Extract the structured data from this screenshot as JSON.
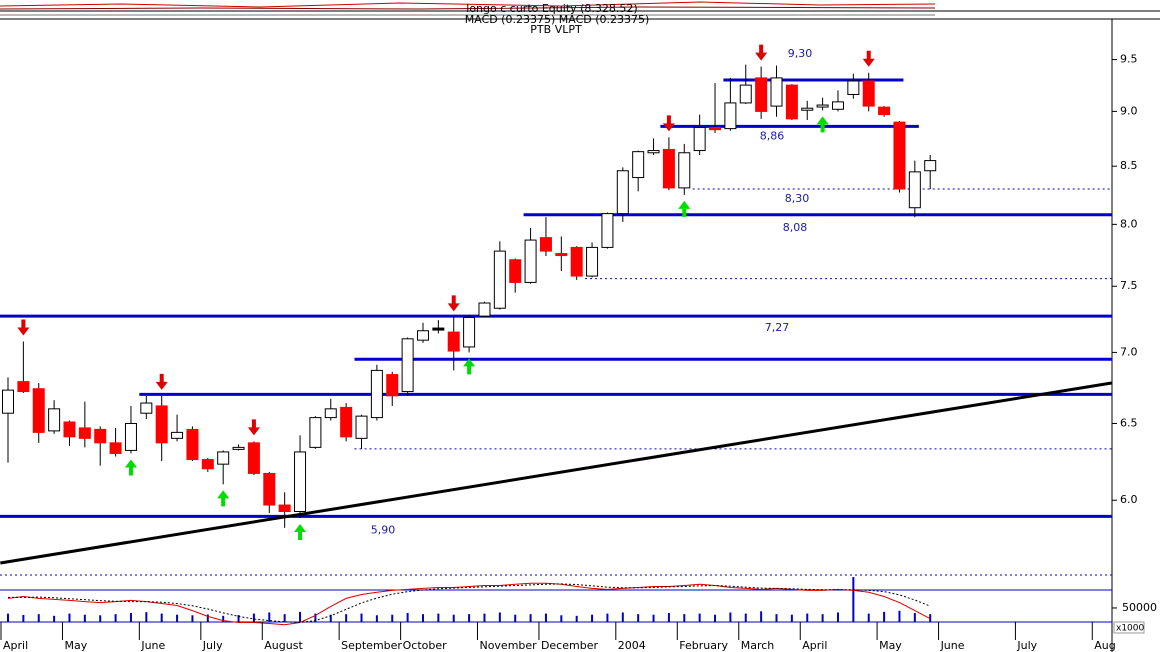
{
  "chart_data": {
    "type": "candlestick",
    "title": "longo c curto Equity (8.328.52)",
    "subtitle": "MACD (0.23375) MACD (0.23375)",
    "caption": "PTB VLPT",
    "categories": [
      "April",
      null,
      null,
      null,
      "May",
      null,
      null,
      null,
      null,
      "June",
      null,
      null,
      null,
      "July",
      null,
      null,
      null,
      "August",
      null,
      null,
      null,
      null,
      "September",
      null,
      null,
      null,
      "October",
      null,
      null,
      null,
      null,
      "November",
      null,
      null,
      null,
      "December",
      null,
      null,
      null,
      null,
      "2004",
      null,
      null,
      null,
      "February",
      null,
      null,
      null,
      "March",
      null,
      null,
      null,
      "April",
      null,
      null,
      null,
      null,
      "May",
      null,
      null,
      null,
      "June",
      null,
      null,
      null,
      null,
      "July",
      null,
      null,
      null,
      null,
      "Aug"
    ],
    "open": [
      6.57,
      6.79,
      6.74,
      6.45,
      6.51,
      6.47,
      6.46,
      6.37,
      6.32,
      6.57,
      6.62,
      6.4,
      6.46,
      6.26,
      6.23,
      6.33,
      6.37,
      6.17,
      5.97,
      5.93,
      6.34,
      6.54,
      6.61,
      6.4,
      6.54,
      6.84,
      6.72,
      7.09,
      7.18,
      7.15,
      7.04,
      7.27,
      7.33,
      7.71,
      7.53,
      7.89,
      7.76,
      7.81,
      7.58,
      7.81,
      8.09,
      8.4,
      8.62,
      8.65,
      8.31,
      8.64,
      8.85,
      8.84,
      9.08,
      9.32,
      9.05,
      9.25,
      9.02,
      9.05,
      9.02,
      9.16,
      9.29,
      9.04,
      8.9,
      8.14,
      8.46,
      null,
      null,
      null,
      null,
      null,
      null,
      null,
      null,
      null,
      null,
      null
    ],
    "high": [
      6.82,
      7.08,
      6.78,
      6.66,
      6.52,
      6.65,
      6.48,
      6.47,
      6.62,
      6.69,
      6.69,
      6.56,
      6.48,
      6.27,
      6.32,
      6.36,
      6.38,
      6.18,
      6.05,
      6.42,
      6.55,
      6.67,
      6.64,
      6.56,
      6.91,
      6.86,
      7.11,
      7.22,
      7.24,
      7.26,
      7.28,
      7.38,
      7.86,
      7.72,
      7.97,
      8.06,
      7.9,
      7.82,
      7.85,
      8.1,
      8.49,
      8.64,
      8.75,
      8.76,
      8.7,
      8.97,
      9.27,
      9.32,
      9.45,
      9.43,
      9.44,
      9.26,
      9.1,
      9.13,
      9.2,
      9.36,
      9.37,
      9.05,
      8.91,
      8.55,
      8.6,
      null,
      null,
      null,
      null,
      null,
      null,
      null,
      null,
      null,
      null,
      null
    ],
    "low": [
      6.24,
      6.71,
      6.37,
      6.43,
      6.35,
      6.34,
      6.22,
      6.28,
      6.3,
      6.53,
      6.25,
      6.38,
      6.25,
      6.18,
      6.1,
      6.32,
      6.16,
      5.92,
      5.83,
      5.89,
      6.33,
      6.52,
      6.38,
      6.33,
      6.52,
      6.62,
      6.69,
      7.07,
      7.14,
      6.87,
      7.0,
      7.26,
      7.32,
      7.45,
      7.52,
      7.74,
      7.62,
      7.55,
      7.57,
      7.8,
      8.02,
      8.28,
      8.6,
      8.29,
      8.25,
      8.6,
      8.8,
      8.82,
      9.07,
      8.93,
      8.95,
      8.92,
      8.92,
      9.01,
      9.0,
      9.12,
      9.0,
      8.95,
      8.27,
      8.06,
      8.3,
      null,
      null,
      null,
      null,
      null,
      null,
      null,
      null,
      null,
      null,
      null
    ],
    "close": [
      6.73,
      6.72,
      6.44,
      6.6,
      6.41,
      6.4,
      6.37,
      6.3,
      6.5,
      6.64,
      6.37,
      6.44,
      6.26,
      6.2,
      6.31,
      6.34,
      6.17,
      5.97,
      5.93,
      6.31,
      6.54,
      6.6,
      6.41,
      6.55,
      6.87,
      6.69,
      7.1,
      7.16,
      7.18,
      7.01,
      7.26,
      7.37,
      7.78,
      7.53,
      7.87,
      7.78,
      7.75,
      7.58,
      7.81,
      8.09,
      8.46,
      8.63,
      8.64,
      8.31,
      8.62,
      8.85,
      8.83,
      9.08,
      9.25,
      9.0,
      9.32,
      8.93,
      9.03,
      9.06,
      9.09,
      9.29,
      9.05,
      8.97,
      8.3,
      8.45,
      8.55,
      null,
      null,
      null,
      null,
      null,
      null,
      null,
      null,
      null,
      null,
      null
    ],
    "up_color": "#ffffff",
    "down_color": "#ff0000",
    "flat_color": "#000000",
    "log_scale": true,
    "ylim": [
      5.55,
      9.9
    ],
    "yticks": [
      9.5,
      {
        "value": 9,
        "label": "9.0"
      },
      8.5,
      {
        "value": 8,
        "label": "8.0"
      },
      7.5,
      {
        "value": 7,
        "label": "7.0"
      },
      6.5,
      {
        "value": 6,
        "label": "6.0"
      }
    ],
    "levels": [
      {
        "value": 9.3,
        "label": "9,30",
        "start": 47,
        "end": 58,
        "style": "solid"
      },
      {
        "value": 8.86,
        "label": "8,86",
        "start": 42.9,
        "end": 59,
        "style": "solid"
      },
      {
        "value": 8.3,
        "label": "8,30",
        "start": 45,
        "style": "dashed"
      },
      {
        "value": 8.08,
        "label": "8,08",
        "start": 34,
        "style": "solid"
      },
      {
        "value": 7.56,
        "start": 38,
        "style": "dashed"
      },
      {
        "value": 7.27,
        "label": "7,27",
        "start": -0.5,
        "style": "solid"
      },
      {
        "value": 6.95,
        "start": 23,
        "style": "solid"
      },
      {
        "value": 6.7,
        "start": 9,
        "style": "solid"
      },
      {
        "value": 6.33,
        "start": 23,
        "style": "dashed"
      },
      {
        "value": 5.9,
        "label": "5,90",
        "start": -0.5,
        "style": "solid"
      }
    ],
    "level_color": "#0000cc",
    "trendline": {
      "x": [
        -0.5,
        71.8
      ],
      "values": [
        5.62,
        6.78
      ],
      "color": "#000000"
    },
    "sell_signals": [
      1,
      10,
      16,
      29,
      43,
      49,
      56
    ],
    "buy_signals": [
      8,
      14,
      19,
      30,
      44,
      53
    ],
    "volume": {
      "values": [
        30000,
        25000,
        28000,
        22000,
        30000,
        26000,
        24000,
        28000,
        32000,
        35000,
        30000,
        26000,
        24000,
        27000,
        22000,
        25000,
        30000,
        34000,
        28000,
        36000,
        30000,
        26000,
        28000,
        30000,
        24000,
        26000,
        32000,
        28000,
        30000,
        26000,
        28000,
        30000,
        34000,
        26000,
        28000,
        30000,
        24000,
        22000,
        26000,
        30000,
        34000,
        28000,
        26000,
        32000,
        28000,
        30000,
        26000,
        34000,
        30000,
        38000,
        28000,
        26000,
        30000,
        28000,
        34000,
        160000,
        30000,
        36000,
        40000,
        32000,
        28000,
        null,
        null,
        null,
        null,
        null,
        null,
        null,
        null,
        null,
        null,
        null
      ],
      "ylim": [
        0,
        114000
      ],
      "yticks": [
        50000
      ],
      "unit_label": "x1000",
      "color": "#0000cc"
    },
    "indicator": {
      "ylim": [
        -2,
        12
      ],
      "series": [
        {
          "style": "solid",
          "color": "#dd0000",
          "values": [
            6.9,
            7.5,
            6.9,
            6.6,
            6.3,
            5.9,
            5.6,
            5.9,
            6.3,
            5.9,
            5.3,
            4.7,
            3.1,
            1.3,
            0,
            -0.6,
            -0.6,
            -0.9,
            -1.3,
            -0.6,
            1.6,
            4.4,
            6.9,
            8.1,
            8.8,
            9.4,
            9.7,
            10,
            10.3,
            10.3,
            10.6,
            10.9,
            10.9,
            11.3,
            11.6,
            11.6,
            11.3,
            10.6,
            10,
            9.7,
            10,
            10.3,
            10.6,
            10.6,
            10.9,
            11.3,
            10.9,
            10.3,
            10,
            9.7,
            10,
            9.7,
            9.4,
            9.4,
            9.7,
            9.4,
            8.8,
            7.5,
            5.6,
            3.1,
            0.6,
            null,
            null,
            null,
            null,
            null,
            null,
            null,
            null,
            null,
            null,
            null
          ]
        },
        {
          "style": "dotted",
          "color": "#000000",
          "values": [
            7.2,
            7.2,
            7.3,
            7.1,
            6.8,
            6.5,
            6.2,
            6.0,
            5.9,
            5.9,
            5.7,
            5.3,
            4.6,
            3.6,
            2.4,
            1.3,
            0.5,
            0,
            -0.4,
            -0.6,
            0,
            1.5,
            3.5,
            5.5,
            7.0,
            8.2,
            9.0,
            9.5,
            9.9,
            10.1,
            10.3,
            10.5,
            10.7,
            10.9,
            11.1,
            11.3,
            11.4,
            11.2,
            10.8,
            10.4,
            10.2,
            10.2,
            10.3,
            10.5,
            10.6,
            10.8,
            10.9,
            10.7,
            10.4,
            10.1,
            10.0,
            9.9,
            9.7,
            9.6,
            9.6,
            9.6,
            9.4,
            9.0,
            8.0,
            6.4,
            4.5,
            null,
            null,
            null,
            null,
            null,
            null,
            null,
            null,
            null,
            null,
            null
          ]
        }
      ]
    }
  }
}
